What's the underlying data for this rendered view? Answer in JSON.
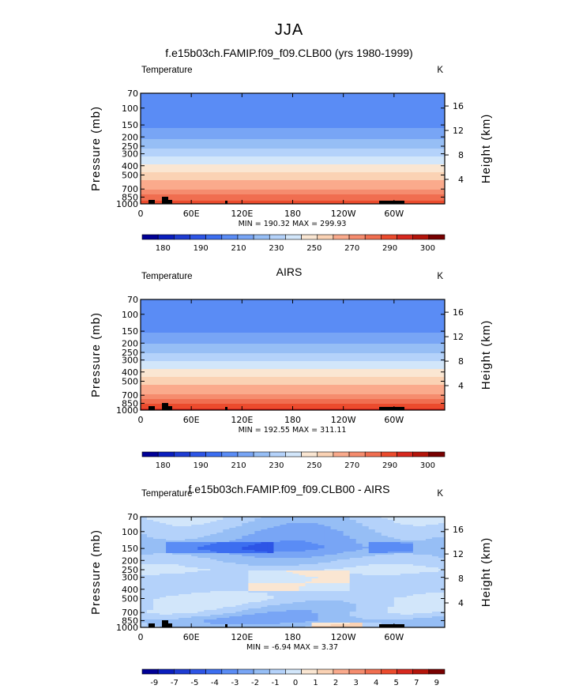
{
  "page_title": "JJA",
  "colors": {
    "temperature": [
      "#000096",
      "#0a1ebe",
      "#1e3cd2",
      "#2d55e6",
      "#3c6ef0",
      "#5a8cf5",
      "#78a5f5",
      "#96bef5",
      "#b4d2fa",
      "#d2e6fa",
      "#fae6d2",
      "#fad2b4",
      "#faaa8c",
      "#f58c6e",
      "#f06e50",
      "#eb4b2d",
      "#d7281e",
      "#b4140a",
      "#780000"
    ],
    "difference": [
      "#000096",
      "#0a1ebe",
      "#1e3cd2",
      "#2d55e6",
      "#3c6ef0",
      "#5a8cf5",
      "#78a5f5",
      "#96bef5",
      "#b4d2fa",
      "#d2e6fa",
      "#fae6d2",
      "#fad2b4",
      "#faaa8c",
      "#f58c6e",
      "#f06e50",
      "#eb4b2d",
      "#d7281e",
      "#b4140a",
      "#780000"
    ]
  },
  "panels": [
    {
      "title": "f.e15b03ch.FAMIP.f09_f09.CLB00 (yrs 1980-1999)",
      "field_label": "Temperature",
      "units": "K",
      "stats": "MIN = 190.32   MAX = 299.93",
      "colorbar_labels": [
        "180",
        "190",
        "210",
        "230",
        "250",
        "270",
        "290",
        "300"
      ],
      "mode": "temperature"
    },
    {
      "title": "AIRS",
      "field_label": "Temperature",
      "units": "K",
      "stats": "MIN = 192.55   MAX = 311.11",
      "colorbar_labels": [
        "180",
        "190",
        "210",
        "230",
        "250",
        "270",
        "290",
        "300"
      ],
      "mode": "temperature"
    },
    {
      "title": "f.e15b03ch.FAMIP.f09_f09.CLB00 - AIRS",
      "field_label": "Temperature",
      "units": "K",
      "stats": "MIN =   -6.94   MAX =    3.37",
      "colorbar_labels": [
        "-9",
        "-7",
        "-5",
        "-4",
        "-3",
        "-2",
        "-1",
        "0",
        "1",
        "2",
        "3",
        "4",
        "5",
        "7",
        "9"
      ],
      "mode": "difference"
    }
  ],
  "chart_data": [
    {
      "type": "heatmap",
      "title": "f.e15b03ch.FAMIP.f09_f09.CLB00 (yrs 1980-1999)",
      "variable": "Temperature",
      "units": "K",
      "ylabel": "Pressure (mb)",
      "ylabel_right": "Height (km)",
      "x_ticks": [
        "0",
        "60E",
        "120E",
        "180",
        "120W",
        "60W"
      ],
      "y_ticks": [
        "70",
        "100",
        "150",
        "200",
        "250",
        "300",
        "400",
        "500",
        "700",
        "850",
        "1000"
      ],
      "y_right_ticks": [
        "4",
        "8",
        "12",
        "16"
      ],
      "x_range": [
        0,
        360
      ],
      "y_range": [
        1000,
        70
      ],
      "min": 190.32,
      "max": 299.93,
      "profile": {
        "pressure": [
          70,
          100,
          150,
          200,
          250,
          300,
          400,
          500,
          700,
          850,
          1000
        ],
        "temperature": [
          205,
          200,
          208,
          218,
          228,
          237,
          252,
          264,
          280,
          287,
          294
        ]
      }
    },
    {
      "type": "heatmap",
      "title": "AIRS",
      "variable": "Temperature",
      "units": "K",
      "ylabel": "Pressure (mb)",
      "ylabel_right": "Height (km)",
      "x_ticks": [
        "0",
        "60E",
        "120E",
        "180",
        "120W",
        "60W"
      ],
      "y_ticks": [
        "70",
        "100",
        "150",
        "200",
        "250",
        "300",
        "400",
        "500",
        "700",
        "850",
        "1000"
      ],
      "y_right_ticks": [
        "4",
        "8",
        "12",
        "16"
      ],
      "x_range": [
        0,
        360
      ],
      "y_range": [
        1000,
        70
      ],
      "min": 192.55,
      "max": 311.11,
      "profile": {
        "pressure": [
          70,
          100,
          150,
          200,
          250,
          300,
          400,
          500,
          700,
          850,
          1000
        ],
        "temperature": [
          206,
          201,
          209,
          219,
          229,
          238,
          253,
          266,
          282,
          290,
          297
        ]
      }
    },
    {
      "type": "heatmap",
      "title": "f.e15b03ch.FAMIP.f09_f09.CLB00 - AIRS",
      "variable": "Temperature",
      "units": "K",
      "ylabel": "Pressure (mb)",
      "ylabel_right": "Height (km)",
      "x_ticks": [
        "0",
        "60E",
        "120E",
        "180",
        "120W",
        "60W"
      ],
      "y_ticks": [
        "70",
        "100",
        "150",
        "200",
        "250",
        "300",
        "400",
        "500",
        "700",
        "850",
        "1000"
      ],
      "y_right_ticks": [
        "4",
        "8",
        "12",
        "16"
      ],
      "x_range": [
        0,
        360
      ],
      "y_range": [
        1000,
        70
      ],
      "min": -6.94,
      "max": 3.37,
      "profile": {
        "pressure": [
          70,
          100,
          150,
          200,
          250,
          300,
          400,
          500,
          700,
          850,
          1000
        ],
        "difference": [
          -1.5,
          -2.5,
          -3.5,
          -2,
          -1,
          -1.5,
          -1.5,
          -1,
          -2,
          -3,
          -2
        ]
      }
    }
  ],
  "axes": {
    "ylabel": "Pressure (mb)",
    "ylabel_right": "Height (km)",
    "x_ticks": [
      "0",
      "60E",
      "120E",
      "180",
      "120W",
      "60W"
    ],
    "y_ticks": [
      "70",
      "100",
      "150",
      "200",
      "250",
      "300",
      "400",
      "500",
      "700",
      "850",
      "1000"
    ],
    "y_right_ticks": [
      "4",
      "8",
      "12",
      "16"
    ]
  }
}
